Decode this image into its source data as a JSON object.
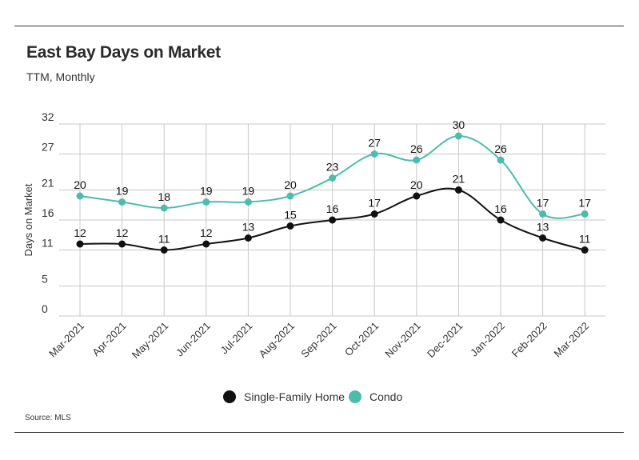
{
  "title": "East Bay Days on Market",
  "subtitle": "TTM, Monthly",
  "source": "Source:  MLS",
  "chart_data": {
    "type": "line",
    "title": "East Bay Days on Market",
    "subtitle": "TTM, Monthly",
    "xlabel": "",
    "ylabel": "Days on Market",
    "categories": [
      "Mar-2021",
      "Apr-2021",
      "May-2021",
      "Jun-2021",
      "Jul-2021",
      "Aug-2021",
      "Sep-2021",
      "Oct-2021",
      "Nov-2021",
      "Dec-2021",
      "Jan-2022",
      "Feb-2022",
      "Mar-2022"
    ],
    "y_ticks": [
      "0",
      "5",
      "11",
      "16",
      "21",
      "27",
      "32"
    ],
    "ylim": [
      0,
      32
    ],
    "grid": true,
    "legend_position": "bottom",
    "series": [
      {
        "name": "Single-Family Home",
        "color": "#111111",
        "values": [
          12,
          12,
          11,
          12,
          13,
          15,
          16,
          17,
          20,
          21,
          16,
          13,
          11
        ]
      },
      {
        "name": "Condo",
        "color": "#4dbcab",
        "values": [
          20,
          19,
          18,
          19,
          19,
          20,
          23,
          27,
          26,
          30,
          26,
          17,
          17
        ]
      }
    ]
  }
}
